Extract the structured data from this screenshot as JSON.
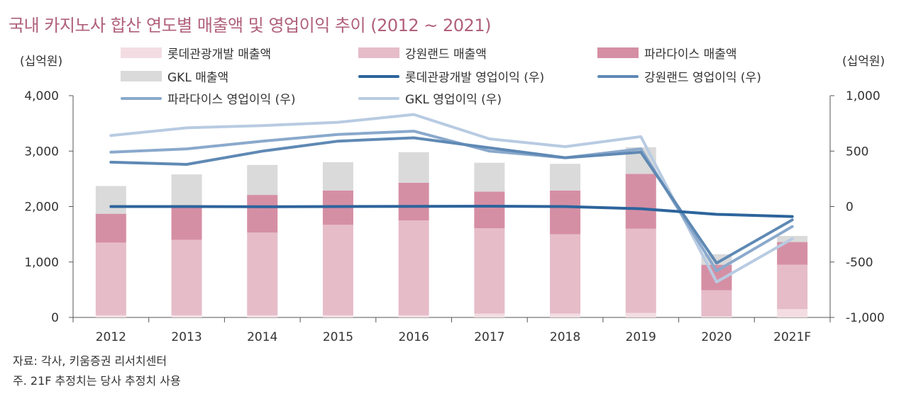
{
  "title": "국내 카지노사 합산 연도별 매출액 및 영업이익 추이 (2012 ~ 2021)",
  "left_unit": "(십억원)",
  "right_unit": "(십억원)",
  "notes": {
    "source": "자료: 각사, 키움증권 리서치센터",
    "footnote": "주. 21F 추정치는 당사 추정치 사용"
  },
  "colors": {
    "lotte_rev": "#f3dde3",
    "kangwon_rev": "#e6bcc9",
    "paradise_rev": "#d58fa4",
    "gkl_rev": "#dadada",
    "lotte_op": "#2d649c",
    "kangwon_op": "#5f89b4",
    "paradise_op": "#8aa9cc",
    "gkl_op": "#b8cbe2",
    "title": "#b0607a"
  },
  "chart_data": {
    "type": "bar",
    "categories": [
      "2012",
      "2013",
      "2014",
      "2015",
      "2016",
      "2017",
      "2018",
      "2019",
      "2020",
      "2021F"
    ],
    "ylim_left": [
      0,
      4000
    ],
    "ylim_right": [
      -1000,
      1000
    ],
    "yticks_left": [
      "0",
      "1,000",
      "2,000",
      "3,000",
      "4,000"
    ],
    "yticks_right": [
      "-1,000",
      "-500",
      "0",
      "500",
      "1,000"
    ],
    "legend_position": "top",
    "bar_series": [
      {
        "name": "롯데관광개발 매출액",
        "color_key": "lotte_rev",
        "values": [
          40,
          40,
          40,
          40,
          40,
          70,
          70,
          80,
          20,
          150
        ]
      },
      {
        "name": "강원랜드 매출액",
        "color_key": "kangwon_rev",
        "values": [
          1310,
          1360,
          1490,
          1630,
          1710,
          1540,
          1430,
          1520,
          470,
          800
        ]
      },
      {
        "name": "파라다이스 매출액",
        "color_key": "paradise_rev",
        "values": [
          520,
          580,
          680,
          620,
          680,
          660,
          790,
          990,
          460,
          410
        ]
      },
      {
        "name": "GKL 매출액",
        "color_key": "gkl_rev",
        "values": [
          500,
          600,
          540,
          510,
          550,
          520,
          480,
          480,
          190,
          110
        ]
      }
    ],
    "line_series": [
      {
        "name": "롯데관광개발 영업이익 (우)",
        "color_key": "lotte_op",
        "values": [
          0,
          0,
          -2,
          0,
          2,
          3,
          0,
          -20,
          -70,
          -90
        ]
      },
      {
        "name": "강원랜드 영업이익 (우)",
        "color_key": "kangwon_op",
        "values": [
          400,
          380,
          500,
          590,
          620,
          530,
          440,
          490,
          -510,
          -120
        ]
      },
      {
        "name": "파라다이스 영업이익 (우)",
        "color_key": "paradise_op",
        "values": [
          490,
          520,
          590,
          650,
          680,
          500,
          440,
          520,
          -580,
          -180
        ]
      },
      {
        "name": "GKL 영업이익 (우)",
        "color_key": "gkl_op",
        "values": [
          640,
          710,
          730,
          760,
          830,
          610,
          540,
          630,
          -680,
          -290
        ]
      }
    ]
  }
}
